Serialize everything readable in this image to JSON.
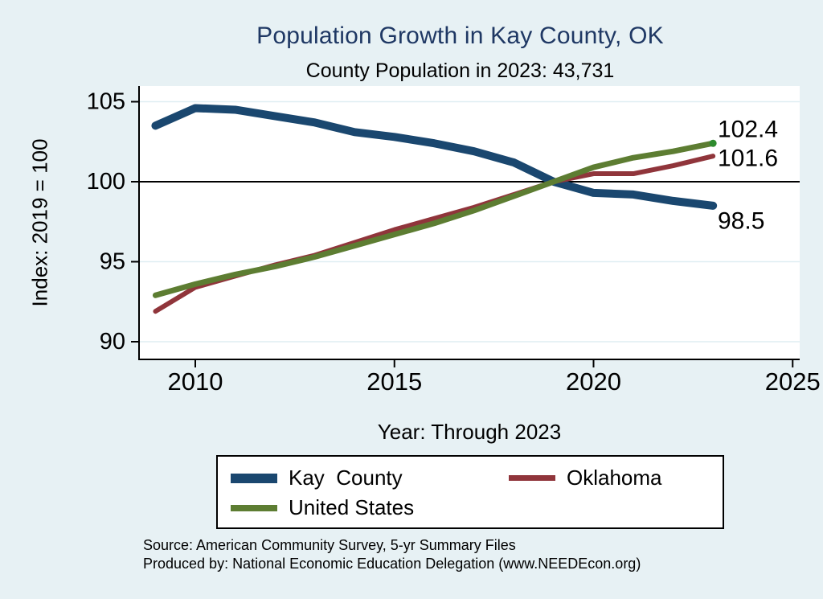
{
  "colors": {
    "background": "#e7f1f4",
    "plot_background": "#ffffff",
    "title_text": "#1f3864",
    "axis": "#000000",
    "reference_line": "#000000",
    "gridline": "#dfeef2",
    "kay_county": "#1a476f",
    "oklahoma": "#90353b",
    "united_states": "#5d7d32",
    "end_marker_green": "#2e8b2e"
  },
  "chart_data": {
    "type": "line",
    "title": "Population Growth in Kay County, OK",
    "subtitle": "County Population in 2023: 43,731",
    "xlabel": "Year: Through 2023",
    "ylabel": "Index: 2019 = 100",
    "x": [
      2009,
      2010,
      2011,
      2012,
      2013,
      2014,
      2015,
      2016,
      2017,
      2018,
      2019,
      2020,
      2021,
      2022,
      2023
    ],
    "xticks": [
      2010,
      2015,
      2020,
      2025
    ],
    "yticks": [
      90,
      95,
      100,
      105
    ],
    "xlim": [
      2008.6,
      2025.2
    ],
    "ylim": [
      88.9,
      106.0
    ],
    "reference_line_y": 100,
    "grid": true,
    "legend_position": "bottom",
    "series": [
      {
        "name": "Kay  County",
        "color_key": "kay_county",
        "values": [
          103.5,
          104.6,
          104.5,
          104.1,
          103.7,
          103.1,
          102.8,
          102.4,
          101.9,
          101.2,
          100.0,
          99.3,
          99.2,
          98.8,
          98.5
        ],
        "end_label": "98.5",
        "end_marker": false
      },
      {
        "name": "Oklahoma",
        "color_key": "oklahoma",
        "values": [
          91.9,
          93.4,
          94.1,
          94.8,
          95.4,
          96.2,
          97.0,
          97.7,
          98.4,
          99.2,
          100.0,
          100.5,
          100.5,
          101.0,
          101.6
        ],
        "end_label": "101.6",
        "end_marker": false
      },
      {
        "name": "United States",
        "color_key": "united_states",
        "values": [
          92.9,
          93.6,
          94.2,
          94.7,
          95.3,
          96.0,
          96.7,
          97.4,
          98.2,
          99.1,
          100.0,
          100.9,
          101.5,
          101.9,
          102.4
        ],
        "end_label": "102.4",
        "end_marker": true
      }
    ]
  },
  "footer": {
    "source_line": "Source: American Community Survey, 5-yr Summary Files",
    "produced_by_line": "Produced by: National Economic Education Delegation (www.NEEDEcon.org)"
  }
}
